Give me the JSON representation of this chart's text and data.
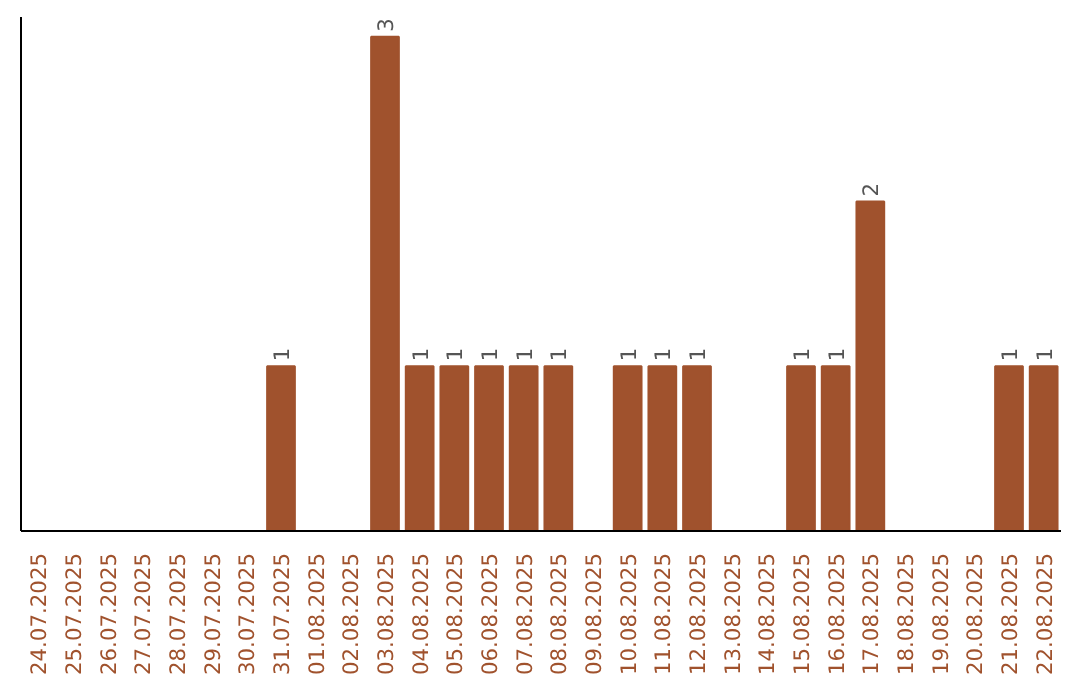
{
  "chart_data": {
    "type": "bar",
    "categories": [
      "24.07.2025",
      "25.07.2025",
      "26.07.2025",
      "27.07.2025",
      "28.07.2025",
      "29.07.2025",
      "30.07.2025",
      "31.07.2025",
      "01.08.2025",
      "02.08.2025",
      "03.08.2025",
      "04.08.2025",
      "05.08.2025",
      "06.08.2025",
      "07.08.2025",
      "08.08.2025",
      "09.08.2025",
      "10.08.2025",
      "11.08.2025",
      "12.08.2025",
      "13.08.2025",
      "14.08.2025",
      "15.08.2025",
      "16.08.2025",
      "17.08.2025",
      "18.08.2025",
      "19.08.2025",
      "20.08.2025",
      "21.08.2025",
      "22.08.2025"
    ],
    "values": [
      0,
      0,
      0,
      0,
      0,
      0,
      0,
      1,
      0,
      0,
      3,
      1,
      1,
      1,
      1,
      1,
      0,
      1,
      1,
      1,
      0,
      0,
      1,
      1,
      2,
      0,
      0,
      0,
      1,
      1
    ],
    "value_labels": [
      null,
      null,
      null,
      null,
      null,
      null,
      null,
      "1",
      null,
      null,
      "3",
      "1",
      "1",
      "1",
      "1",
      "1",
      null,
      "1",
      "1",
      "1",
      null,
      null,
      "1",
      "1",
      "2",
      null,
      null,
      null,
      "1",
      "1"
    ],
    "color": "#a0522d",
    "tick_labels": "x"
  }
}
